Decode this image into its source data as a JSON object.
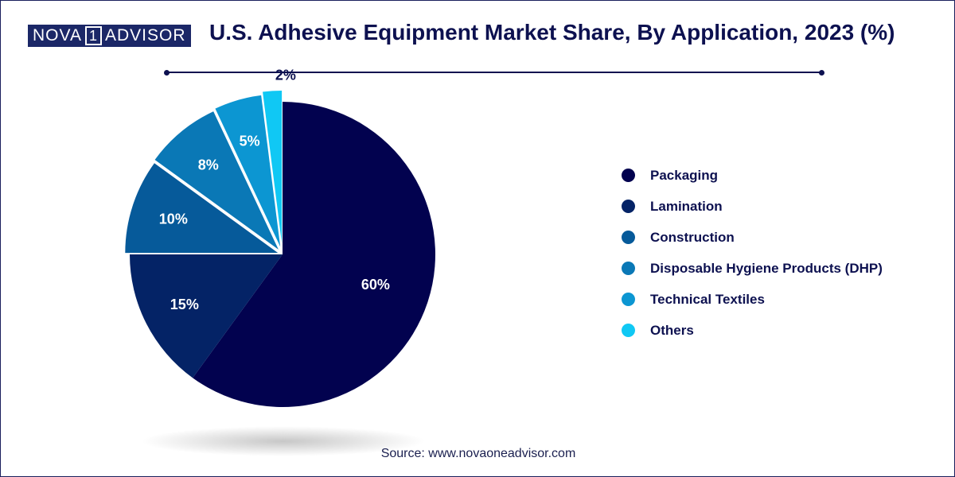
{
  "brand": {
    "left": "NOVA",
    "mid": "1",
    "right": "ADVISOR"
  },
  "source": "Source: www.novaoneadvisor.com",
  "chart_data": {
    "type": "pie",
    "title": "U.S. Adhesive Equipment Market Share, By Application, 2023 (%)",
    "categories": [
      "Packaging",
      "Lamination",
      "Construction",
      "Disposable Hygiene Products (DHP)",
      "Technical Textiles",
      "Others"
    ],
    "values": [
      60,
      15,
      10,
      8,
      5,
      2
    ],
    "labels": [
      "60%",
      "15%",
      "10%",
      "8%",
      "5%",
      "2%"
    ],
    "colors": [
      "#02024f",
      "#042366",
      "#065a9a",
      "#0a78b6",
      "#0c96d2",
      "#10c8f4"
    ],
    "legend": "right"
  }
}
